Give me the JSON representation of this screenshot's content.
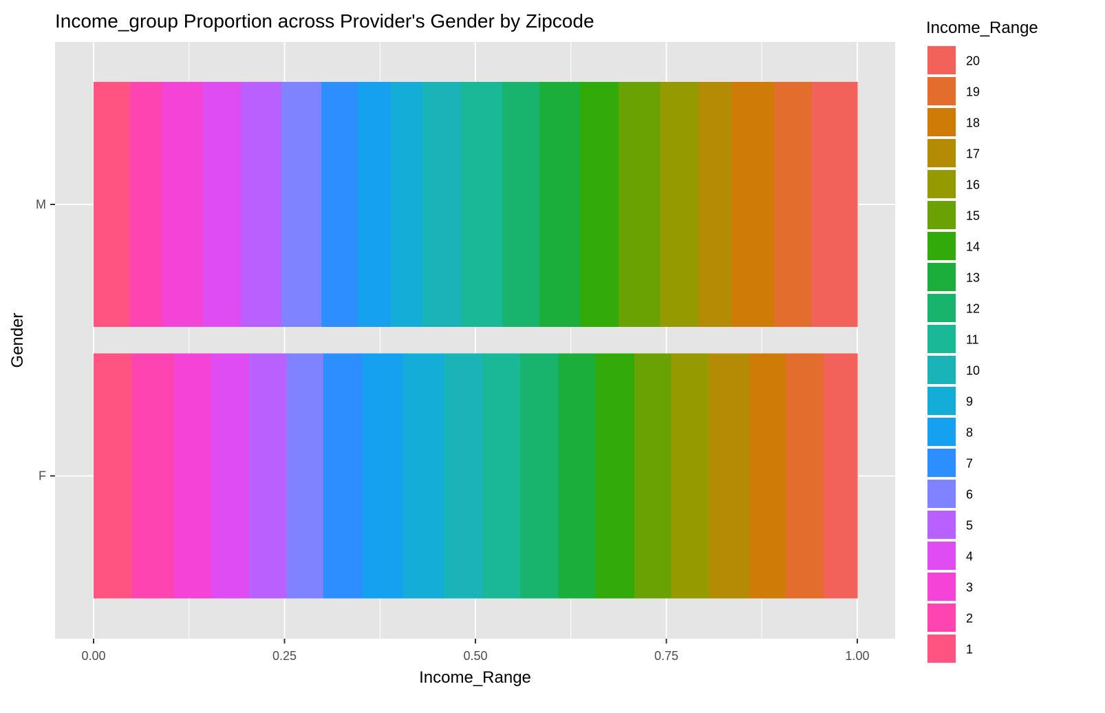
{
  "chart_data": {
    "type": "bar",
    "orientation": "horizontal",
    "stacked": true,
    "title": "Income_group Proportion across Provider's Gender by Zipcode",
    "xlabel": "Income_Range",
    "ylabel": "Gender",
    "xlim": [
      0,
      1
    ],
    "x_ticks": [
      "0.00",
      "0.25",
      "0.50",
      "0.75",
      "1.00"
    ],
    "x_tick_values": [
      0,
      0.25,
      0.5,
      0.75,
      1.0
    ],
    "categories": [
      "F",
      "M"
    ],
    "grid": true,
    "legend": {
      "title": "Income_Range",
      "placement": "right",
      "order": [
        "20",
        "19",
        "18",
        "17",
        "16",
        "15",
        "14",
        "13",
        "12",
        "11",
        "10",
        "9",
        "8",
        "7",
        "6",
        "5",
        "4",
        "3",
        "2",
        "1"
      ]
    },
    "series": [
      {
        "name": "1",
        "color": "#FF5481",
        "values": [
          0.05,
          0.047
        ]
      },
      {
        "name": "2",
        "color": "#FD44B0",
        "values": [
          0.055,
          0.042
        ]
      },
      {
        "name": "3",
        "color": "#F344D7",
        "values": [
          0.049,
          0.053
        ]
      },
      {
        "name": "4",
        "color": "#DE4CF2",
        "values": [
          0.049,
          0.05
        ]
      },
      {
        "name": "5",
        "color": "#B961FF",
        "values": [
          0.049,
          0.052
        ]
      },
      {
        "name": "6",
        "color": "#8083FF",
        "values": [
          0.048,
          0.052
        ]
      },
      {
        "name": "7",
        "color": "#2C8EFF",
        "values": [
          0.051,
          0.047
        ]
      },
      {
        "name": "8",
        "color": "#16A0F0",
        "values": [
          0.053,
          0.043
        ]
      },
      {
        "name": "9",
        "color": "#13ADD8",
        "values": [
          0.054,
          0.041
        ]
      },
      {
        "name": "10",
        "color": "#19B3B8",
        "values": [
          0.05,
          0.051
        ]
      },
      {
        "name": "11",
        "color": "#19B896",
        "values": [
          0.049,
          0.053
        ]
      },
      {
        "name": "12",
        "color": "#18B46D",
        "values": [
          0.05,
          0.048
        ]
      },
      {
        "name": "13",
        "color": "#1BAE3A",
        "values": [
          0.048,
          0.053
        ]
      },
      {
        "name": "14",
        "color": "#32AA0A",
        "values": [
          0.051,
          0.05
        ]
      },
      {
        "name": "15",
        "color": "#6BA203",
        "values": [
          0.048,
          0.054
        ]
      },
      {
        "name": "16",
        "color": "#949A00",
        "values": [
          0.049,
          0.05
        ]
      },
      {
        "name": "17",
        "color": "#B48B05",
        "values": [
          0.053,
          0.043
        ]
      },
      {
        "name": "18",
        "color": "#CE7B07",
        "values": [
          0.048,
          0.055
        ]
      },
      {
        "name": "19",
        "color": "#E26D2C",
        "values": [
          0.049,
          0.049
        ]
      },
      {
        "name": "20",
        "color": "#F2615A",
        "values": [
          0.044,
          0.059
        ]
      }
    ],
    "panel_background": "#E5E5E5",
    "gridline_color": "#FFFFFF"
  }
}
